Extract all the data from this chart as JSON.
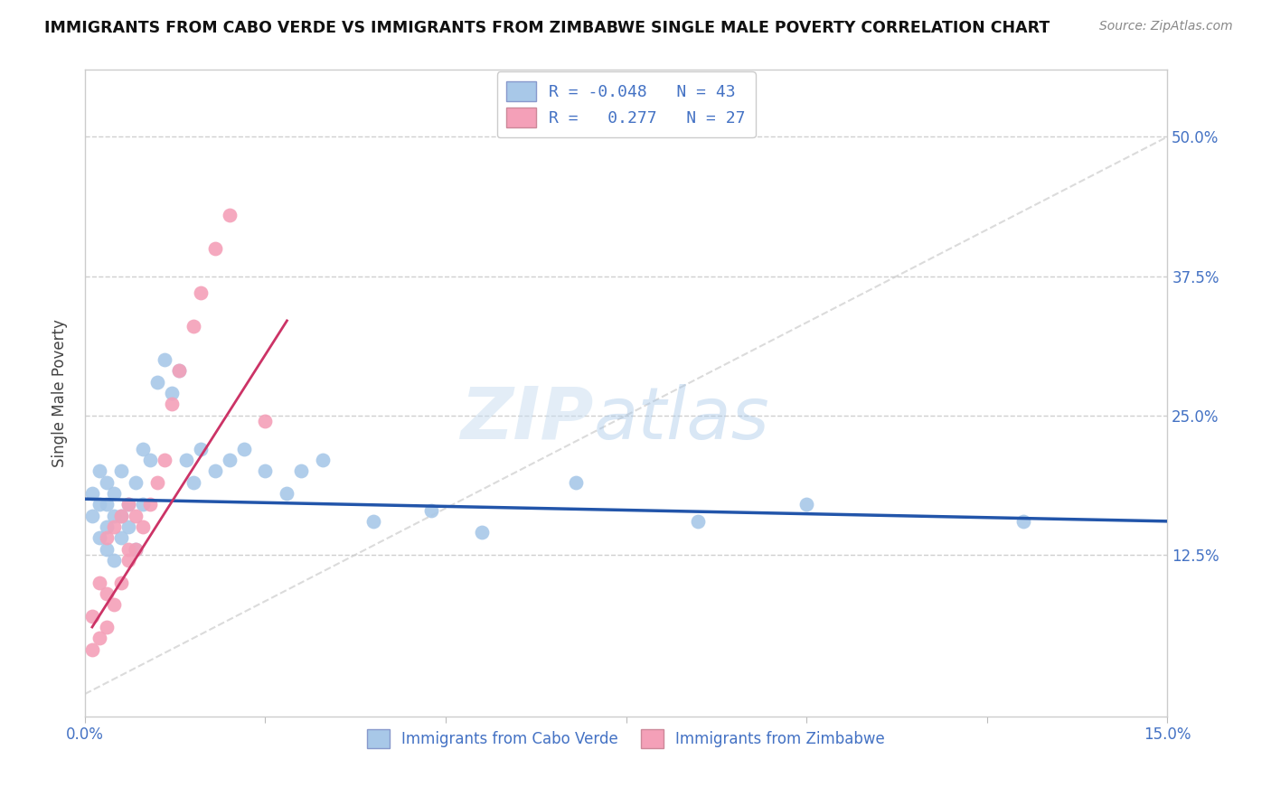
{
  "title": "IMMIGRANTS FROM CABO VERDE VS IMMIGRANTS FROM ZIMBABWE SINGLE MALE POVERTY CORRELATION CHART",
  "source": "Source: ZipAtlas.com",
  "ylabel": "Single Male Poverty",
  "xlim": [
    0.0,
    0.15
  ],
  "ylim": [
    -0.02,
    0.56
  ],
  "yticks": [
    0.125,
    0.25,
    0.375,
    0.5
  ],
  "ytick_labels": [
    "12.5%",
    "25.0%",
    "37.5%",
    "50.0%"
  ],
  "xticks": [
    0.0,
    0.025,
    0.05,
    0.075,
    0.1,
    0.125,
    0.15
  ],
  "xtick_labels": [
    "0.0%",
    "",
    "",
    "",
    "",
    "",
    "15.0%"
  ],
  "legend_r1": "R = -0.048",
  "legend_n1": "N = 43",
  "legend_r2": "R =  0.277",
  "legend_n2": "N = 27",
  "color_blue": "#a8c8e8",
  "color_pink": "#f4a0b8",
  "color_blue_line": "#2255aa",
  "color_pink_line": "#cc3366",
  "color_diag_line": "#cccccc",
  "watermark_zip": "ZIP",
  "watermark_atlas": "atlas",
  "cabo_verde_x": [
    0.001,
    0.001,
    0.002,
    0.002,
    0.002,
    0.003,
    0.003,
    0.003,
    0.003,
    0.004,
    0.004,
    0.004,
    0.005,
    0.005,
    0.005,
    0.006,
    0.006,
    0.007,
    0.007,
    0.008,
    0.008,
    0.009,
    0.01,
    0.011,
    0.012,
    0.013,
    0.014,
    0.015,
    0.016,
    0.018,
    0.02,
    0.022,
    0.025,
    0.028,
    0.03,
    0.033,
    0.04,
    0.048,
    0.055,
    0.068,
    0.085,
    0.1,
    0.13
  ],
  "cabo_verde_y": [
    0.16,
    0.18,
    0.14,
    0.17,
    0.2,
    0.13,
    0.15,
    0.17,
    0.19,
    0.12,
    0.16,
    0.18,
    0.14,
    0.16,
    0.2,
    0.15,
    0.17,
    0.13,
    0.19,
    0.22,
    0.17,
    0.21,
    0.28,
    0.3,
    0.27,
    0.29,
    0.21,
    0.19,
    0.22,
    0.2,
    0.21,
    0.22,
    0.2,
    0.18,
    0.2,
    0.21,
    0.155,
    0.165,
    0.145,
    0.19,
    0.155,
    0.17,
    0.155
  ],
  "zimbabwe_x": [
    0.001,
    0.001,
    0.002,
    0.002,
    0.003,
    0.003,
    0.003,
    0.004,
    0.004,
    0.005,
    0.005,
    0.006,
    0.006,
    0.006,
    0.007,
    0.007,
    0.008,
    0.009,
    0.01,
    0.011,
    0.012,
    0.013,
    0.015,
    0.016,
    0.018,
    0.02,
    0.025
  ],
  "zimbabwe_y": [
    0.04,
    0.07,
    0.05,
    0.1,
    0.06,
    0.09,
    0.14,
    0.08,
    0.15,
    0.1,
    0.16,
    0.12,
    0.17,
    0.13,
    0.13,
    0.16,
    0.15,
    0.17,
    0.19,
    0.21,
    0.26,
    0.29,
    0.33,
    0.36,
    0.4,
    0.43,
    0.245
  ],
  "blue_line_x": [
    0.0,
    0.15
  ],
  "blue_line_y": [
    0.175,
    0.155
  ],
  "pink_line_x": [
    0.001,
    0.028
  ],
  "pink_line_y": [
    0.06,
    0.335
  ]
}
